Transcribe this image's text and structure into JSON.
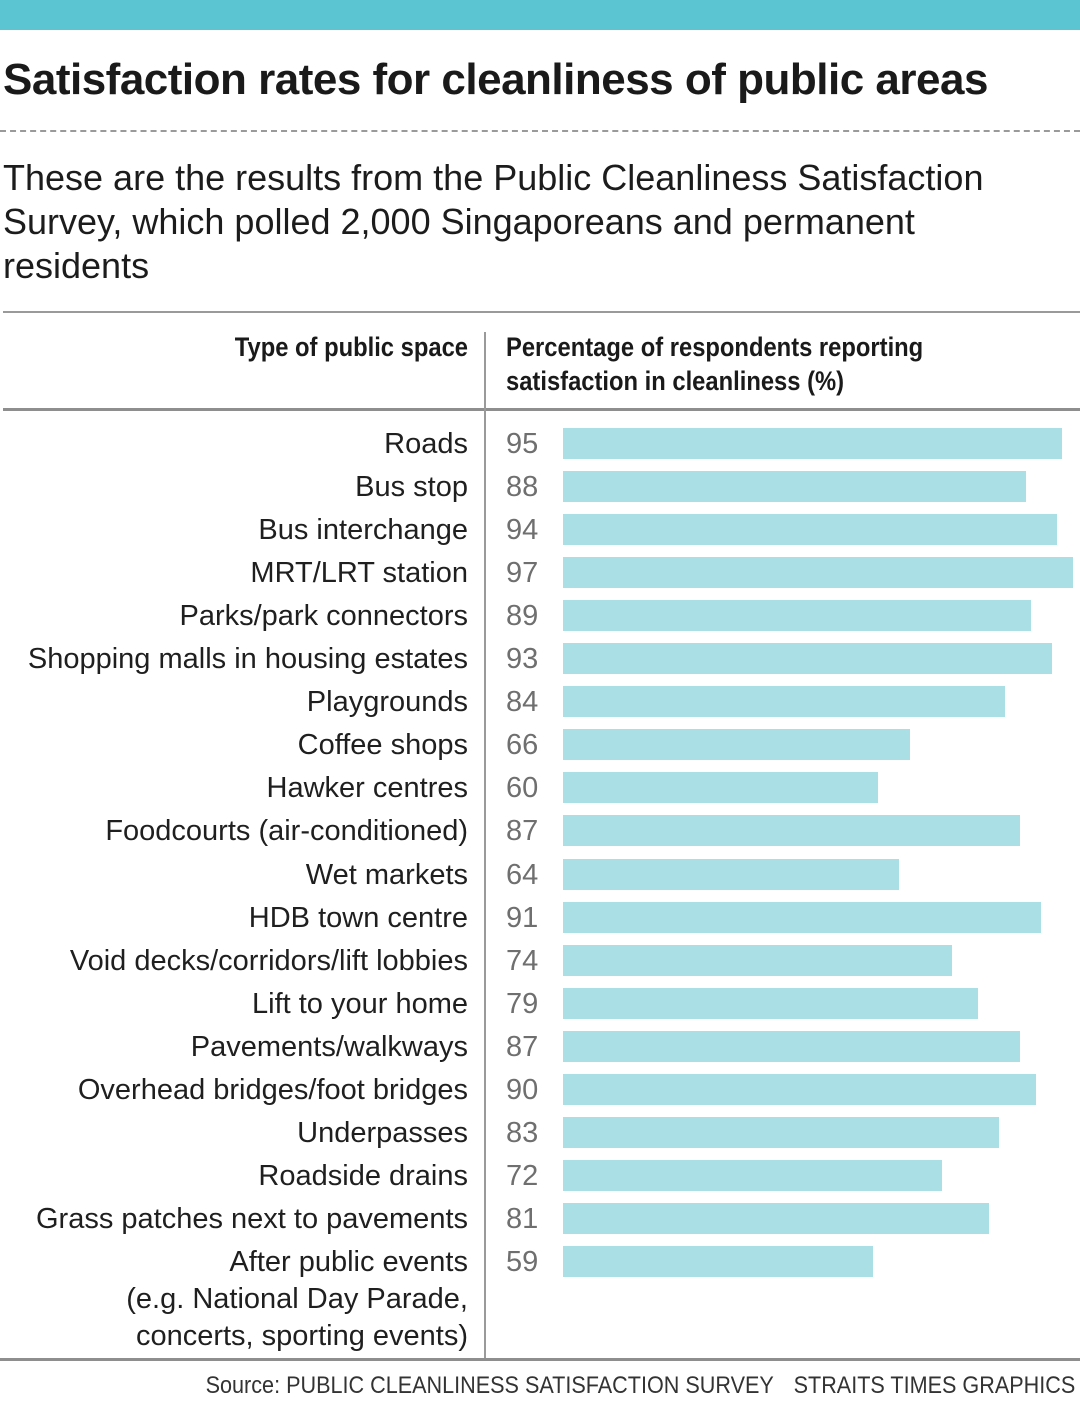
{
  "colors": {
    "accent": "#5bc5d1",
    "bar": "#abdfe6"
  },
  "title": "Satisfaction rates for cleanliness of public areas",
  "subtitle": "These are the results from the Public Cleanliness Satisfaction Survey, which polled 2,000 Singaporeans and permanent residents",
  "table_head": {
    "left": "Type of public space",
    "right": "Percentage of respondents reporting satisfaction in cleanliness (%)"
  },
  "source": {
    "label": "Source: PUBLIC CLEANLINESS SATISFACTION SURVEY",
    "credit": "STRAITS TIMES GRAPHICS"
  },
  "chart_data": {
    "type": "bar",
    "orientation": "horizontal",
    "title": "Satisfaction rates for cleanliness of public areas",
    "xlabel": "Percentage of respondents reporting satisfaction in cleanliness (%)",
    "ylabel": "Type of public space",
    "xlim": [
      0,
      97
    ],
    "categories": [
      "Roads",
      "Bus stop",
      "Bus interchange",
      "MRT/LRT station",
      "Parks/park connectors",
      "Shopping malls in housing estates",
      "Playgrounds",
      "Coffee shops",
      "Hawker centres",
      "Foodcourts (air-conditioned)",
      "Wet markets",
      "HDB town centre",
      "Void decks/corridors/lift lobbies",
      "Lift to your home",
      "Pavements/walkways",
      "Overhead bridges/foot bridges",
      "Underpasses",
      "Roadside drains",
      "Grass patches next to pavements",
      "After public events\n(e.g. National Day Parade,\nconcerts, sporting events)"
    ],
    "values": [
      95,
      88,
      94,
      97,
      89,
      93,
      84,
      66,
      60,
      87,
      64,
      91,
      74,
      79,
      87,
      90,
      83,
      72,
      81,
      59
    ]
  }
}
